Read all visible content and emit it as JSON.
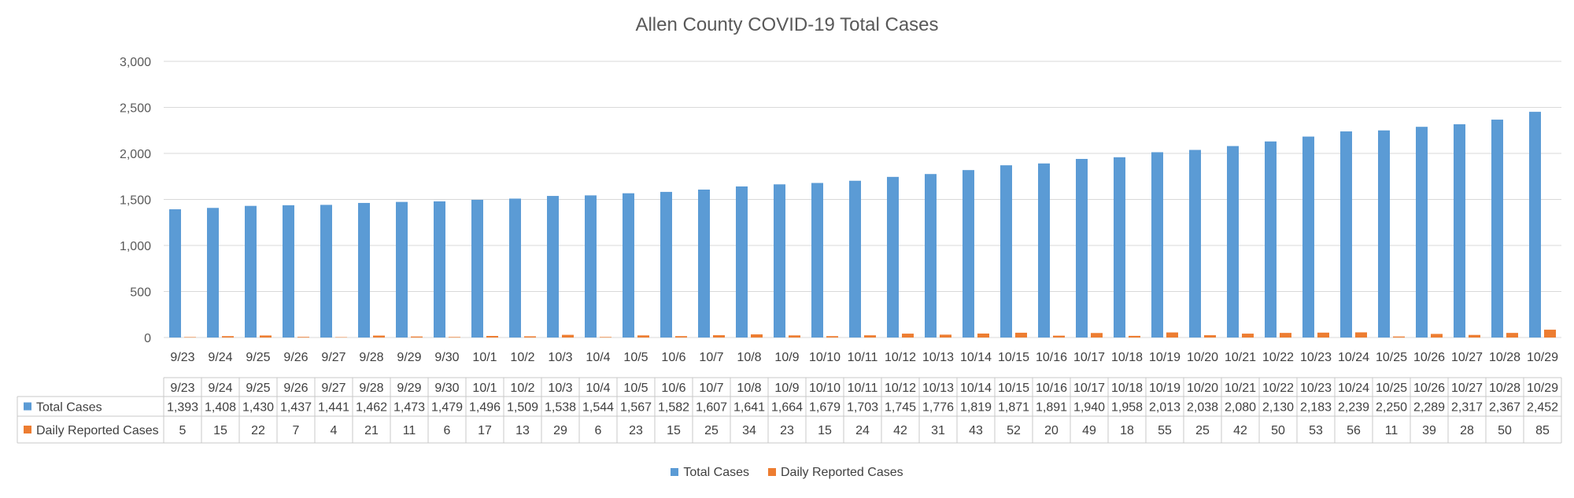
{
  "chart_data": {
    "type": "bar",
    "title": "Allen County COVID-19 Total Cases",
    "xlabel": "",
    "ylabel": "",
    "ylim": [
      0,
      3000
    ],
    "yticks": [
      "0",
      "500",
      "1,000",
      "1,500",
      "2,000",
      "2,500",
      "3,000"
    ],
    "yticks_values": [
      0,
      500,
      1000,
      1500,
      2000,
      2500,
      3000
    ],
    "grid": true,
    "legend_position": "bottom",
    "categories": [
      "9/23",
      "9/24",
      "9/25",
      "9/26",
      "9/27",
      "9/28",
      "9/29",
      "9/30",
      "10/1",
      "10/2",
      "10/3",
      "10/4",
      "10/5",
      "10/6",
      "10/7",
      "10/8",
      "10/9",
      "10/10",
      "10/11",
      "10/12",
      "10/13",
      "10/14",
      "10/15",
      "10/16",
      "10/17",
      "10/18",
      "10/19",
      "10/20",
      "10/21",
      "10/22",
      "10/23",
      "10/24",
      "10/25",
      "10/26",
      "10/27",
      "10/28",
      "10/29"
    ],
    "series": [
      {
        "name": "Total Cases",
        "color": "#5b9bd5",
        "values": [
          1393,
          1408,
          1430,
          1437,
          1441,
          1462,
          1473,
          1479,
          1496,
          1509,
          1538,
          1544,
          1567,
          1582,
          1607,
          1641,
          1664,
          1679,
          1703,
          1745,
          1776,
          1819,
          1871,
          1891,
          1940,
          1958,
          2013,
          2038,
          2080,
          2130,
          2183,
          2239,
          2250,
          2289,
          2317,
          2367,
          2452
        ],
        "display": [
          "1,393",
          "1,408",
          "1,430",
          "1,437",
          "1,441",
          "1,462",
          "1,473",
          "1,479",
          "1,496",
          "1,509",
          "1,538",
          "1,544",
          "1,567",
          "1,582",
          "1,607",
          "1,641",
          "1,664",
          "1,679",
          "1,703",
          "1,745",
          "1,776",
          "1,819",
          "1,871",
          "1,891",
          "1,940",
          "1,958",
          "2,013",
          "2,038",
          "2,080",
          "2,130",
          "2,183",
          "2,239",
          "2,250",
          "2,289",
          "2,317",
          "2,367",
          "2,452"
        ]
      },
      {
        "name": "Daily Reported Cases",
        "color": "#ed7d31",
        "values": [
          5,
          15,
          22,
          7,
          4,
          21,
          11,
          6,
          17,
          13,
          29,
          6,
          23,
          15,
          25,
          34,
          23,
          15,
          24,
          42,
          31,
          43,
          52,
          20,
          49,
          18,
          55,
          25,
          42,
          50,
          53,
          56,
          11,
          39,
          28,
          50,
          85
        ],
        "display": [
          "5",
          "15",
          "22",
          "7",
          "4",
          "21",
          "11",
          "6",
          "17",
          "13",
          "29",
          "6",
          "23",
          "15",
          "25",
          "34",
          "23",
          "15",
          "24",
          "42",
          "31",
          "43",
          "52",
          "20",
          "49",
          "18",
          "55",
          "25",
          "42",
          "50",
          "53",
          "56",
          "11",
          "39",
          "28",
          "50",
          "85"
        ]
      }
    ]
  }
}
